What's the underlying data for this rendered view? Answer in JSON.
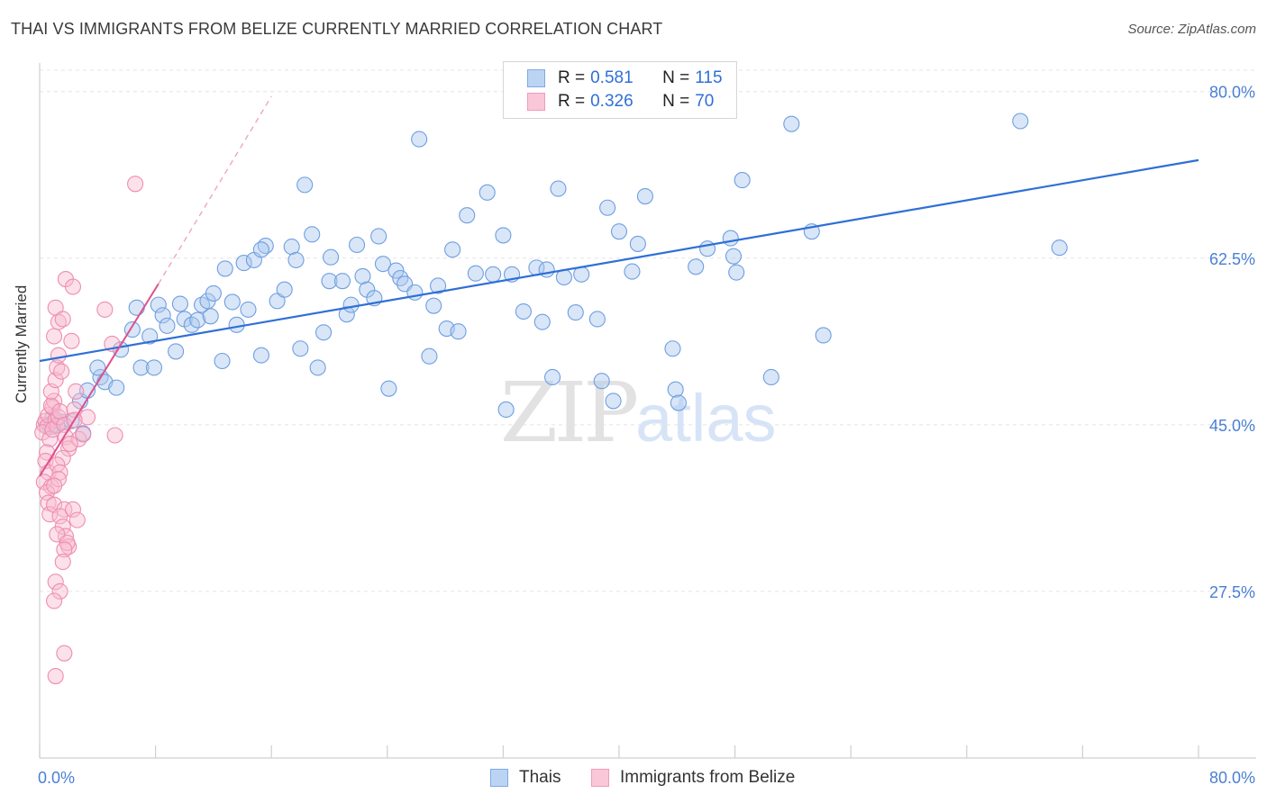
{
  "title": "THAI VS IMMIGRANTS FROM BELIZE CURRENTLY MARRIED CORRELATION CHART",
  "source": "Source: ZipAtlas.com",
  "watermark": {
    "zip": "ZIP",
    "atlas": "atlas"
  },
  "legend": {
    "rows": [
      {
        "r_label": "R =",
        "r_value": "0.581",
        "n_label": "N =",
        "n_value": "115"
      },
      {
        "r_label": "R =",
        "r_value": "0.326",
        "n_label": "N =",
        "n_value": "70"
      }
    ]
  },
  "bottom_legend": {
    "thais": "Thais",
    "belize": "Immigrants from Belize"
  },
  "colors": {
    "thais_fill": "#aac8f0",
    "thais_stroke": "#6e9fe0",
    "thais_line": "#2f6fd6",
    "belize_fill": "#f8bcd0",
    "belize_stroke": "#ee8db0",
    "belize_line": "#e0508a",
    "tick_label": "#4a7fd4"
  },
  "chart_data": {
    "type": "scatter",
    "title": "THAI VS IMMIGRANTS FROM BELIZE CURRENTLY MARRIED CORRELATION CHART",
    "xlabel": "",
    "ylabel": "Currently Married",
    "xlim": [
      0,
      80
    ],
    "ylim": [
      10,
      83
    ],
    "x_tick_labels": [
      "0.0%",
      "80.0%"
    ],
    "y_ticks": [
      {
        "value": 80.0,
        "label": "80.0%"
      },
      {
        "value": 62.5,
        "label": "62.5%"
      },
      {
        "value": 45.0,
        "label": "45.0%"
      },
      {
        "value": 27.5,
        "label": "27.5%"
      }
    ],
    "series": [
      {
        "name": "Thais",
        "r": 0.581,
        "n": 115,
        "trend": {
          "x0": 0.0,
          "y0": 51.7,
          "x1": 80.0,
          "y1": 72.8
        },
        "points": [
          [
            0.6,
            45.0
          ],
          [
            1.2,
            45.0
          ],
          [
            0.8,
            44.8
          ],
          [
            1.5,
            45.3
          ],
          [
            0.9,
            45.8
          ],
          [
            2.2,
            45.4
          ],
          [
            2.8,
            47.5
          ],
          [
            3.0,
            44.1
          ],
          [
            3.3,
            48.6
          ],
          [
            4.2,
            50.0
          ],
          [
            4.5,
            49.5
          ],
          [
            4.0,
            51.0
          ],
          [
            5.3,
            48.9
          ],
          [
            5.6,
            52.9
          ],
          [
            6.4,
            55.0
          ],
          [
            6.7,
            57.3
          ],
          [
            7.0,
            51.0
          ],
          [
            7.6,
            54.3
          ],
          [
            7.9,
            51.0
          ],
          [
            8.2,
            57.6
          ],
          [
            8.5,
            56.5
          ],
          [
            8.8,
            55.4
          ],
          [
            9.4,
            52.7
          ],
          [
            9.7,
            57.7
          ],
          [
            10.0,
            56.1
          ],
          [
            10.5,
            55.5
          ],
          [
            10.9,
            56.0
          ],
          [
            11.2,
            57.6
          ],
          [
            11.6,
            58.0
          ],
          [
            11.8,
            56.4
          ],
          [
            12.0,
            58.8
          ],
          [
            12.6,
            51.7
          ],
          [
            12.8,
            61.4
          ],
          [
            13.3,
            57.9
          ],
          [
            13.6,
            55.5
          ],
          [
            14.1,
            62.0
          ],
          [
            14.4,
            57.1
          ],
          [
            14.8,
            62.3
          ],
          [
            15.3,
            52.3
          ],
          [
            15.6,
            63.8
          ],
          [
            15.3,
            63.4
          ],
          [
            16.4,
            58.0
          ],
          [
            16.9,
            59.2
          ],
          [
            17.4,
            63.7
          ],
          [
            17.7,
            62.3
          ],
          [
            18.0,
            53.0
          ],
          [
            18.3,
            70.2
          ],
          [
            18.8,
            65.0
          ],
          [
            19.2,
            51.0
          ],
          [
            19.6,
            54.7
          ],
          [
            20.1,
            62.6
          ],
          [
            20.0,
            60.1
          ],
          [
            20.9,
            60.1
          ],
          [
            21.2,
            56.6
          ],
          [
            21.5,
            57.6
          ],
          [
            21.9,
            63.9
          ],
          [
            22.3,
            60.6
          ],
          [
            22.6,
            59.2
          ],
          [
            23.1,
            58.3
          ],
          [
            23.4,
            64.8
          ],
          [
            23.7,
            61.9
          ],
          [
            24.1,
            48.8
          ],
          [
            24.6,
            61.2
          ],
          [
            24.9,
            60.4
          ],
          [
            25.2,
            59.8
          ],
          [
            25.9,
            58.9
          ],
          [
            26.2,
            75.0
          ],
          [
            26.9,
            52.2
          ],
          [
            27.2,
            57.5
          ],
          [
            27.5,
            59.6
          ],
          [
            28.1,
            55.1
          ],
          [
            28.5,
            63.4
          ],
          [
            28.9,
            54.8
          ],
          [
            29.5,
            67.0
          ],
          [
            30.1,
            60.9
          ],
          [
            30.9,
            69.4
          ],
          [
            31.3,
            60.8
          ],
          [
            32.0,
            64.9
          ],
          [
            32.2,
            46.6
          ],
          [
            32.6,
            60.8
          ],
          [
            33.4,
            56.9
          ],
          [
            34.3,
            61.5
          ],
          [
            34.7,
            55.8
          ],
          [
            35.0,
            61.3
          ],
          [
            35.4,
            50.0
          ],
          [
            35.8,
            69.8
          ],
          [
            36.2,
            60.5
          ],
          [
            37.0,
            56.8
          ],
          [
            37.4,
            60.8
          ],
          [
            38.5,
            56.1
          ],
          [
            38.8,
            49.6
          ],
          [
            39.2,
            67.8
          ],
          [
            39.6,
            47.5
          ],
          [
            40.0,
            65.3
          ],
          [
            40.9,
            61.1
          ],
          [
            41.3,
            64.0
          ],
          [
            41.8,
            69.0
          ],
          [
            43.7,
            53.0
          ],
          [
            43.9,
            48.7
          ],
          [
            44.1,
            47.3
          ],
          [
            45.3,
            61.6
          ],
          [
            46.1,
            63.5
          ],
          [
            47.7,
            64.6
          ],
          [
            47.9,
            62.7
          ],
          [
            48.1,
            61.0
          ],
          [
            48.5,
            70.7
          ],
          [
            50.5,
            50.0
          ],
          [
            51.9,
            76.6
          ],
          [
            53.3,
            65.3
          ],
          [
            54.1,
            54.4
          ],
          [
            67.7,
            76.9
          ],
          [
            70.4,
            63.6
          ]
        ]
      },
      {
        "name": "Immigrants from Belize",
        "r": 0.326,
        "n": 70,
        "trend": {
          "x0": 0.0,
          "y0": 39.6,
          "x1": 8.2,
          "y1": 59.8,
          "dash_x1": 16.0,
          "dash_y1": 79.5
        },
        "points": [
          [
            0.3,
            45.0
          ],
          [
            0.4,
            45.4
          ],
          [
            0.5,
            44.8
          ],
          [
            0.6,
            46.0
          ],
          [
            0.2,
            44.2
          ],
          [
            0.7,
            43.5
          ],
          [
            0.5,
            42.1
          ],
          [
            0.4,
            41.2
          ],
          [
            0.6,
            40.0
          ],
          [
            0.3,
            39.0
          ],
          [
            0.8,
            38.5
          ],
          [
            0.5,
            37.9
          ],
          [
            0.6,
            36.8
          ],
          [
            0.7,
            35.6
          ],
          [
            0.9,
            46.8
          ],
          [
            1.0,
            47.5
          ],
          [
            0.8,
            47.0
          ],
          [
            1.1,
            45.5
          ],
          [
            1.2,
            44.9
          ],
          [
            0.9,
            44.5
          ],
          [
            1.3,
            45.8
          ],
          [
            1.4,
            46.4
          ],
          [
            0.8,
            48.5
          ],
          [
            1.1,
            49.7
          ],
          [
            1.2,
            51.0
          ],
          [
            1.5,
            50.6
          ],
          [
            1.3,
            52.3
          ],
          [
            1.0,
            54.3
          ],
          [
            1.3,
            55.8
          ],
          [
            1.1,
            57.3
          ],
          [
            1.6,
            56.1
          ],
          [
            1.8,
            60.3
          ],
          [
            2.3,
            59.5
          ],
          [
            2.2,
            53.8
          ],
          [
            2.5,
            48.5
          ],
          [
            2.4,
            46.6
          ],
          [
            1.7,
            45.0
          ],
          [
            1.8,
            43.7
          ],
          [
            2.0,
            42.5
          ],
          [
            1.6,
            41.5
          ],
          [
            1.2,
            40.8
          ],
          [
            1.4,
            40.0
          ],
          [
            1.3,
            39.3
          ],
          [
            1.0,
            38.6
          ],
          [
            1.0,
            36.6
          ],
          [
            1.7,
            36.1
          ],
          [
            1.4,
            35.4
          ],
          [
            1.6,
            34.3
          ],
          [
            1.8,
            33.3
          ],
          [
            1.2,
            33.5
          ],
          [
            2.0,
            32.2
          ],
          [
            1.9,
            32.6
          ],
          [
            1.7,
            31.9
          ],
          [
            1.6,
            30.6
          ],
          [
            1.1,
            28.5
          ],
          [
            1.4,
            27.5
          ],
          [
            1.0,
            26.5
          ],
          [
            1.7,
            21.0
          ],
          [
            1.1,
            18.6
          ],
          [
            2.3,
            36.1
          ],
          [
            2.6,
            35.0
          ],
          [
            2.7,
            43.5
          ],
          [
            3.0,
            44.0
          ],
          [
            3.3,
            45.8
          ],
          [
            4.5,
            57.1
          ],
          [
            5.0,
            53.5
          ],
          [
            5.2,
            43.9
          ],
          [
            6.6,
            70.3
          ],
          [
            2.1,
            43.0
          ],
          [
            2.4,
            45.5
          ]
        ]
      }
    ]
  }
}
